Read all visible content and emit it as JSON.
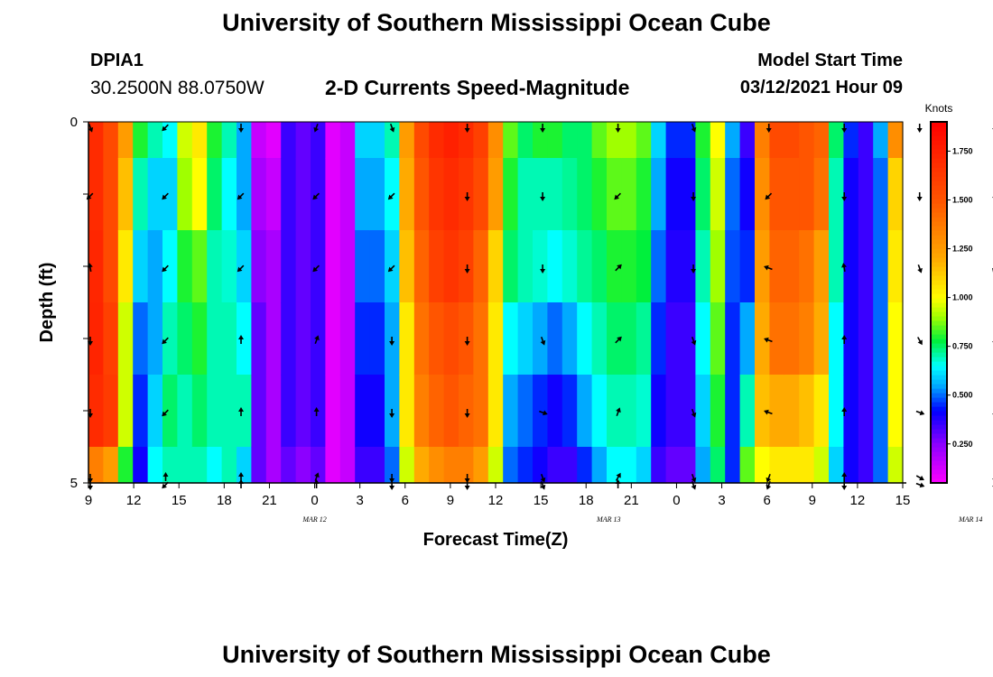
{
  "header": {
    "title": "University of Southern Mississippi Ocean Cube",
    "station_id": "DPIA1",
    "coordinates": "30.2500N 88.0750W",
    "chart_title": "2-D Currents Speed-Magnitude",
    "model_start_label": "Model Start Time",
    "model_start_value": "03/12/2021 Hour 09"
  },
  "footer": {
    "title": "University of Southern Mississippi Ocean Cube"
  },
  "chart_data": {
    "type": "heatmap",
    "title": "2-D Currents Speed-Magnitude",
    "xlabel": "Forecast Time(Z)",
    "ylabel": "Depth (ft)",
    "x_tick_labels": [
      "9",
      "12",
      "15",
      "18",
      "21",
      "0",
      "3",
      "6",
      "9",
      "12",
      "15",
      "18",
      "21",
      "0",
      "3",
      "6",
      "9",
      "12",
      "15"
    ],
    "y_tick_labels": [
      "0",
      "5"
    ],
    "ylim": [
      0,
      5
    ],
    "date_labels": [
      {
        "label": "MAR 12",
        "at_hour": 15
      },
      {
        "label": "MAR 13",
        "at_hour": 34.5
      },
      {
        "label": "MAR 14",
        "at_hour": 58.5
      }
    ],
    "hours": 55,
    "depth_levels": [
      0,
      1,
      2,
      3,
      4,
      5
    ],
    "speed_by_hour_depth": [
      [
        1.7,
        1.7,
        1.72,
        1.73,
        1.7,
        1.35
      ],
      [
        1.55,
        1.55,
        1.55,
        1.6,
        1.62,
        1.25
      ],
      [
        1.25,
        1.15,
        1.05,
        0.95,
        0.95,
        0.8
      ],
      [
        0.8,
        0.7,
        0.6,
        0.5,
        0.45,
        0.4
      ],
      [
        0.7,
        0.6,
        0.55,
        0.55,
        0.6,
        0.65
      ],
      [
        0.65,
        0.6,
        0.65,
        0.7,
        0.75,
        0.7
      ],
      [
        0.95,
        0.9,
        0.8,
        0.75,
        0.7,
        0.7
      ],
      [
        1.05,
        1.0,
        0.85,
        0.8,
        0.75,
        0.7
      ],
      [
        0.8,
        0.75,
        0.7,
        0.7,
        0.7,
        0.65
      ],
      [
        0.7,
        0.65,
        0.68,
        0.7,
        0.7,
        0.7
      ],
      [
        0.55,
        0.55,
        0.6,
        0.65,
        0.7,
        0.6
      ],
      [
        0.15,
        0.2,
        0.25,
        0.3,
        0.3,
        0.3
      ],
      [
        0.1,
        0.15,
        0.2,
        0.2,
        0.2,
        0.2
      ],
      [
        0.35,
        0.35,
        0.35,
        0.35,
        0.35,
        0.3
      ],
      [
        0.3,
        0.3,
        0.3,
        0.3,
        0.3,
        0.25
      ],
      [
        0.35,
        0.35,
        0.35,
        0.35,
        0.35,
        0.3
      ],
      [
        0.1,
        0.1,
        0.1,
        0.1,
        0.1,
        0.1
      ],
      [
        0.15,
        0.15,
        0.15,
        0.15,
        0.15,
        0.15
      ],
      [
        0.6,
        0.55,
        0.5,
        0.45,
        0.4,
        0.35
      ],
      [
        0.6,
        0.55,
        0.5,
        0.45,
        0.4,
        0.35
      ],
      [
        0.7,
        0.65,
        0.6,
        0.55,
        0.55,
        0.5
      ],
      [
        1.25,
        1.2,
        1.15,
        1.05,
        1.05,
        0.95
      ],
      [
        1.55,
        1.5,
        1.45,
        1.4,
        1.35,
        1.2
      ],
      [
        1.7,
        1.65,
        1.6,
        1.5,
        1.45,
        1.3
      ],
      [
        1.75,
        1.7,
        1.65,
        1.55,
        1.5,
        1.35
      ],
      [
        1.7,
        1.65,
        1.6,
        1.5,
        1.45,
        1.35
      ],
      [
        1.6,
        1.55,
        1.45,
        1.4,
        1.4,
        1.25
      ],
      [
        1.3,
        1.25,
        1.1,
        1.05,
        1.05,
        0.95
      ],
      [
        0.85,
        0.8,
        0.75,
        0.65,
        0.55,
        0.5
      ],
      [
        0.75,
        0.7,
        0.7,
        0.6,
        0.5,
        0.45
      ],
      [
        0.8,
        0.7,
        0.68,
        0.55,
        0.45,
        0.4
      ],
      [
        0.8,
        0.7,
        0.65,
        0.5,
        0.4,
        0.35
      ],
      [
        0.75,
        0.72,
        0.68,
        0.55,
        0.45,
        0.35
      ],
      [
        0.75,
        0.75,
        0.72,
        0.65,
        0.55,
        0.45
      ],
      [
        0.85,
        0.8,
        0.75,
        0.7,
        0.65,
        0.55
      ],
      [
        0.9,
        0.85,
        0.8,
        0.75,
        0.7,
        0.65
      ],
      [
        0.9,
        0.85,
        0.8,
        0.75,
        0.7,
        0.65
      ],
      [
        0.85,
        0.8,
        0.78,
        0.72,
        0.68,
        0.6
      ],
      [
        0.6,
        0.55,
        0.5,
        0.45,
        0.4,
        0.35
      ],
      [
        0.45,
        0.4,
        0.38,
        0.35,
        0.35,
        0.3
      ],
      [
        0.45,
        0.4,
        0.38,
        0.35,
        0.35,
        0.3
      ],
      [
        0.8,
        0.75,
        0.7,
        0.65,
        0.6,
        0.55
      ],
      [
        1.0,
        0.95,
        0.9,
        0.85,
        0.8,
        0.75
      ],
      [
        0.55,
        0.5,
        0.48,
        0.45,
        0.45,
        0.45
      ],
      [
        0.35,
        0.4,
        0.45,
        0.55,
        0.7,
        0.85
      ],
      [
        1.35,
        1.3,
        1.25,
        1.2,
        1.15,
        1.0
      ],
      [
        1.55,
        1.5,
        1.45,
        1.4,
        1.2,
        1.05
      ],
      [
        1.55,
        1.5,
        1.45,
        1.4,
        1.2,
        1.05
      ],
      [
        1.5,
        1.5,
        1.4,
        1.35,
        1.15,
        1.05
      ],
      [
        1.45,
        1.4,
        1.25,
        1.2,
        1.05,
        0.95
      ],
      [
        0.75,
        0.7,
        0.7,
        0.65,
        0.65,
        0.6
      ],
      [
        0.45,
        0.4,
        0.4,
        0.4,
        0.4,
        0.4
      ],
      [
        0.35,
        0.35,
        0.35,
        0.35,
        0.35,
        0.35
      ],
      [
        0.55,
        0.5,
        0.5,
        0.5,
        0.5,
        0.5
      ],
      [
        1.3,
        1.1,
        1.05,
        1.0,
        1.0,
        0.95
      ]
    ],
    "arrow_directions_deg": [
      [
        160,
        225,
        180,
        200,
        160,
        180,
        180,
        180,
        160,
        180,
        180,
        180,
        180,
        180,
        180,
        180,
        180,
        180,
        180,
        180,
        180,
        180,
        180
      ],
      [
        225,
        225,
        225,
        225,
        225,
        180,
        180,
        225,
        180,
        225,
        180,
        180,
        180,
        180,
        180,
        225,
        225,
        225,
        225,
        225,
        225,
        225,
        180
      ],
      [
        350,
        225,
        225,
        225,
        225,
        180,
        180,
        45,
        180,
        290,
        350,
        160,
        200,
        150,
        160,
        180,
        180,
        0,
        225,
        225,
        225,
        225,
        350
      ],
      [
        180,
        225,
        0,
        20,
        180,
        180,
        160,
        45,
        160,
        290,
        0,
        150,
        180,
        290,
        160,
        180,
        180,
        0,
        225,
        225,
        180,
        225,
        0
      ],
      [
        180,
        225,
        0,
        0,
        180,
        180,
        110,
        20,
        160,
        290,
        0,
        110,
        180,
        290,
        160,
        180,
        180,
        0,
        150,
        180,
        180,
        225,
        0
      ],
      [
        180,
        225,
        0,
        0,
        180,
        180,
        160,
        0,
        160,
        200,
        180,
        110,
        180,
        290,
        160,
        180,
        180,
        0,
        180,
        180,
        180,
        225,
        0
      ],
      [
        180,
        0,
        0,
        20,
        180,
        180,
        160,
        30,
        160,
        200,
        0,
        120,
        180,
        0,
        160,
        180,
        180,
        0,
        180,
        160,
        180,
        225,
        0
      ]
    ],
    "colorbar": {
      "label": "Knots",
      "tick_values": [
        0.25,
        0.5,
        0.75,
        1.0,
        1.25,
        1.5,
        1.75
      ],
      "tick_labels": [
        "0.250",
        "0.500",
        "0.750",
        "1.000",
        "1.250",
        "1.500",
        "1.750"
      ],
      "min": 0.05,
      "max": 1.9
    }
  }
}
